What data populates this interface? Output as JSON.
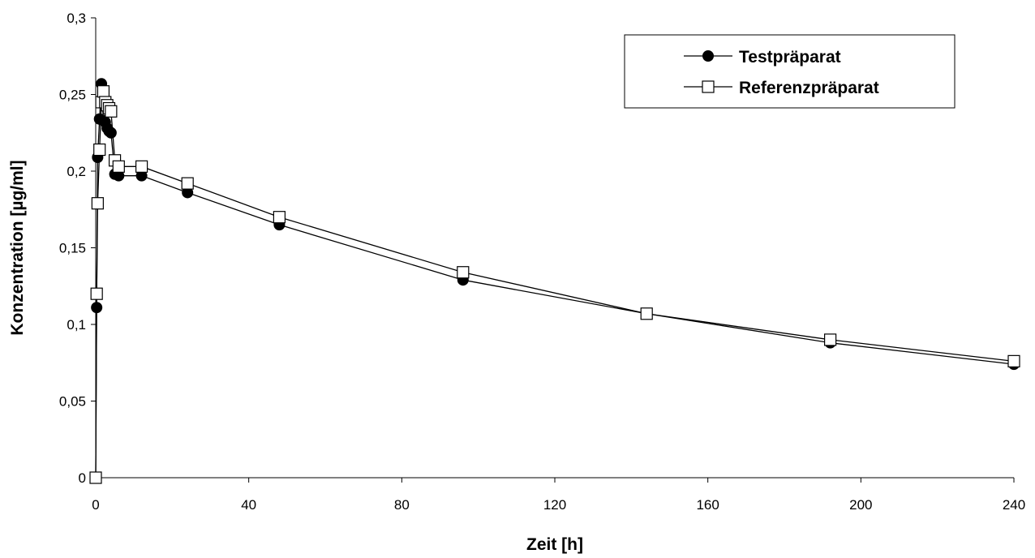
{
  "chart_data": {
    "type": "line",
    "title": "",
    "xlabel": "Zeit [h]",
    "ylabel": "Konzentration [µg/ml]",
    "xlim": [
      0,
      240
    ],
    "ylim": [
      0,
      0.3
    ],
    "x_ticks": [
      0,
      40,
      80,
      120,
      160,
      200,
      240
    ],
    "x_tick_labels": [
      "0",
      "40",
      "80",
      "120",
      "160",
      "200",
      "240"
    ],
    "y_ticks": [
      0,
      0.05,
      0.1,
      0.15,
      0.2,
      0.25,
      0.3
    ],
    "y_tick_labels": [
      "0",
      "0,05",
      "0,1",
      "0,15",
      "0,2",
      "0,25",
      "0,3"
    ],
    "grid": false,
    "legend_position": "top-right",
    "series": [
      {
        "name": "Testpräparat",
        "marker": "filled-circle",
        "color": "#000000",
        "x": [
          0,
          0.25,
          0.5,
          1,
          1.5,
          2,
          2.5,
          3,
          3.5,
          4,
          5,
          6,
          12,
          24,
          48,
          96,
          144,
          192,
          240
        ],
        "y": [
          0,
          0.111,
          0.209,
          0.234,
          0.257,
          0.233,
          0.232,
          0.228,
          0.226,
          0.225,
          0.198,
          0.197,
          0.197,
          0.186,
          0.165,
          0.129,
          0.107,
          0.088,
          0.074
        ]
      },
      {
        "name": "Referenzpräparat",
        "marker": "open-square",
        "color": "#000000",
        "x": [
          0,
          0.25,
          0.5,
          1,
          1.5,
          2,
          2.5,
          3,
          3.5,
          4,
          5,
          6,
          12,
          24,
          48,
          96,
          144,
          192,
          240
        ],
        "y": [
          0,
          0.12,
          0.179,
          0.214,
          0.245,
          0.252,
          0.245,
          0.243,
          0.241,
          0.239,
          0.207,
          0.203,
          0.203,
          0.192,
          0.17,
          0.134,
          0.107,
          0.09,
          0.076
        ]
      }
    ]
  }
}
